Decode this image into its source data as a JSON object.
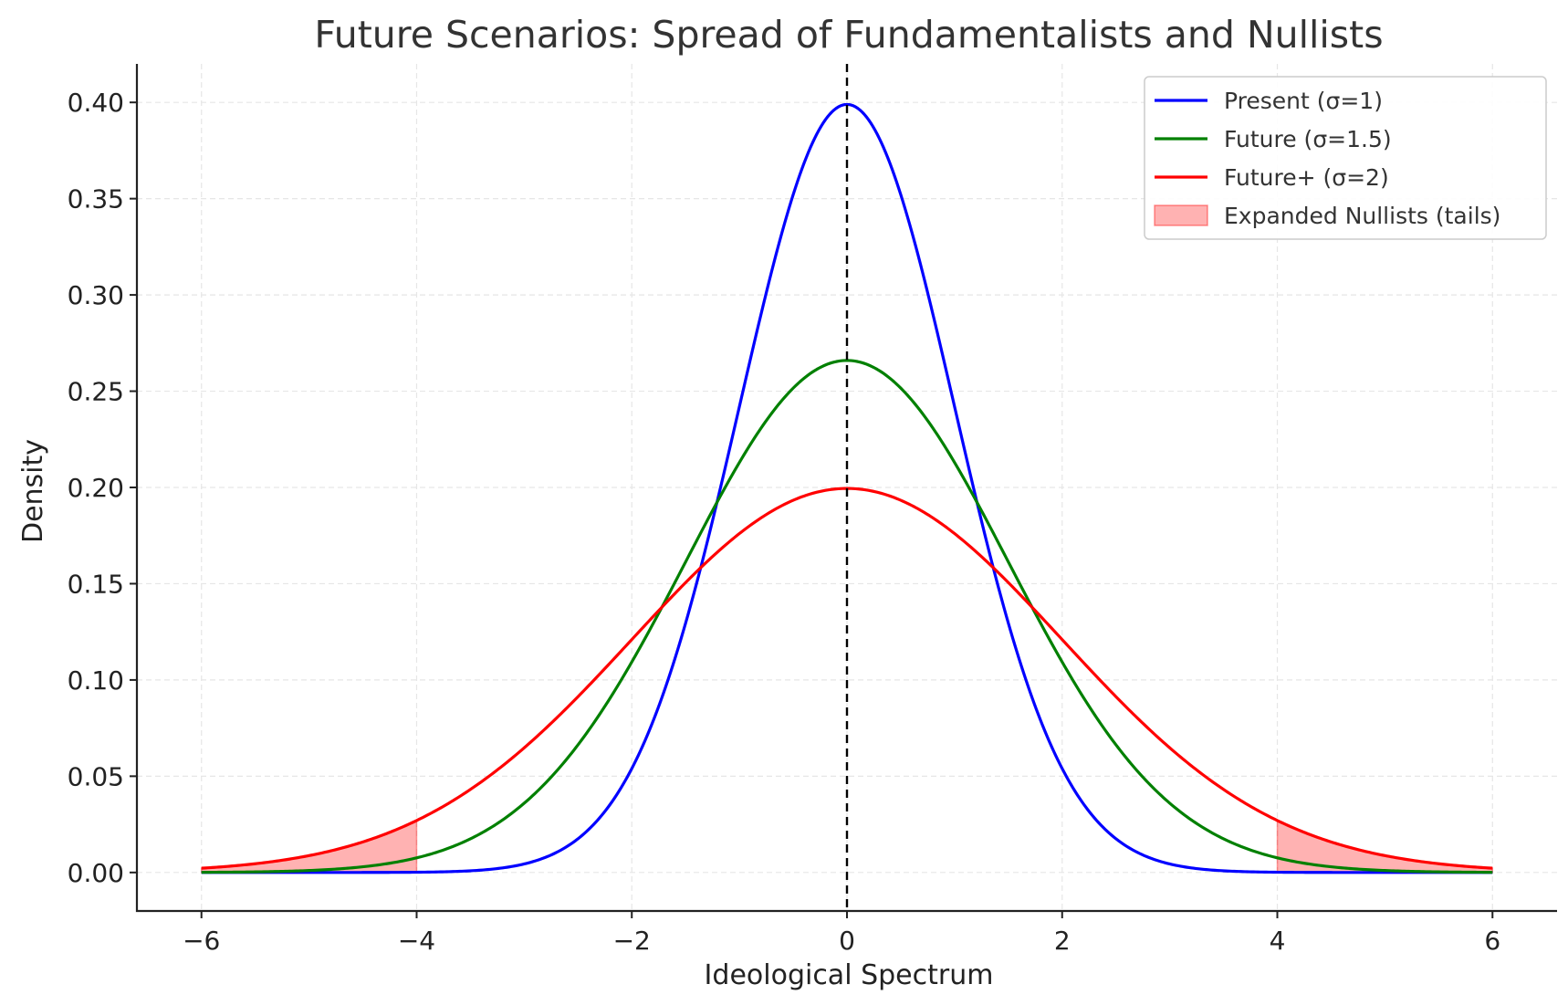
{
  "chart_data": {
    "type": "line",
    "title": "Future Scenarios: Spread of Fundamentalists and Nullists",
    "xlabel": "Ideological Spectrum",
    "ylabel": "Density",
    "xlim": [
      -6.6,
      6.6
    ],
    "ylim": [
      -0.02,
      0.42
    ],
    "x_ticks": [
      -6,
      -4,
      -2,
      0,
      2,
      4,
      6
    ],
    "x_tick_labels": [
      "−6",
      "−4",
      "−2",
      "0",
      "2",
      "4",
      "6"
    ],
    "y_ticks": [
      0.0,
      0.05,
      0.1,
      0.15,
      0.2,
      0.25,
      0.3,
      0.35,
      0.4
    ],
    "y_tick_labels": [
      "0.00",
      "0.05",
      "0.10",
      "0.15",
      "0.20",
      "0.25",
      "0.30",
      "0.35",
      "0.40"
    ],
    "grid": true,
    "legend_position": "top-right",
    "x_range": [
      -6,
      6
    ],
    "series": [
      {
        "name": "Present (σ=1)",
        "sigma": 1,
        "color": "#0000ff"
      },
      {
        "name": "Future (σ=1.5)",
        "sigma": 1.5,
        "color": "#008000"
      },
      {
        "name": "Future+ (σ=2)",
        "sigma": 2,
        "color": "#ff0000"
      }
    ],
    "shaded": {
      "name": "Expanded Nullists (tails)",
      "series_sigma": 2,
      "regions": [
        [
          -6,
          -4
        ],
        [
          4,
          6
        ]
      ],
      "color": "#ff0000",
      "alpha": 0.3
    },
    "vline": {
      "x": 0,
      "style": "dashed",
      "color": "#000000"
    }
  }
}
